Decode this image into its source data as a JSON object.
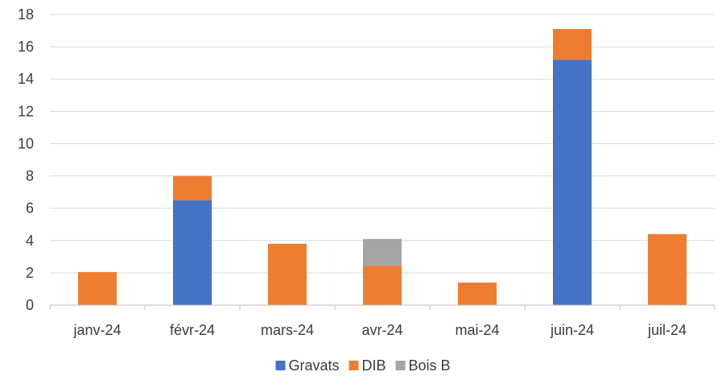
{
  "chart_data": {
    "type": "bar",
    "stacked": true,
    "categories": [
      "janv-24",
      "févr-24",
      "mars-24",
      "avr-24",
      "mai-24",
      "juin-24",
      "juil-24"
    ],
    "series": [
      {
        "name": "Gravats",
        "color": "#4472C4",
        "values": [
          0,
          6.5,
          0,
          0,
          0,
          15.2,
          0
        ]
      },
      {
        "name": "DIB",
        "color": "#ED7D31",
        "values": [
          2.05,
          1.5,
          3.8,
          2.45,
          1.4,
          1.9,
          4.4
        ]
      },
      {
        "name": "Bois B",
        "color": "#A5A5A5",
        "values": [
          0,
          0,
          0,
          1.65,
          0,
          0,
          0
        ]
      }
    ],
    "yticks": [
      "0",
      "2",
      "4",
      "6",
      "8",
      "10",
      "12",
      "14",
      "16",
      "18"
    ],
    "ylim": [
      0,
      18
    ],
    "grid": true,
    "legend_position": "bottom"
  }
}
